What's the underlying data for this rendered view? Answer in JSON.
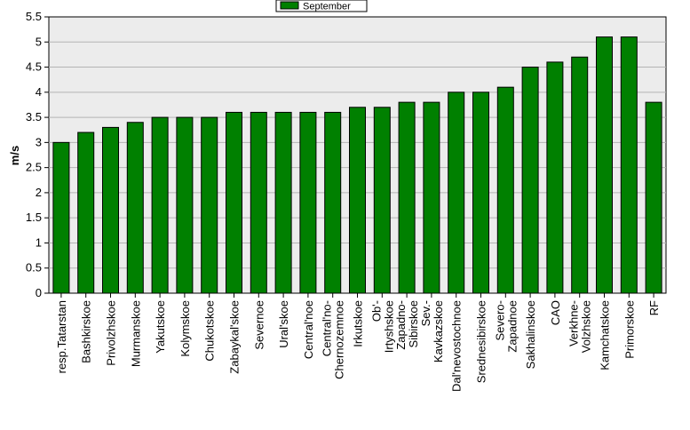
{
  "chart_data": {
    "type": "bar",
    "title": "",
    "xlabel": "",
    "ylabel": "m/s",
    "ylim": [
      0,
      5.5
    ],
    "yticks": [
      "0",
      "0.5",
      "1",
      "1.5",
      "2",
      "2.5",
      "3",
      "3.5",
      "4",
      "4.5",
      "5",
      "5.5"
    ],
    "grid": true,
    "legend_position": "top-center",
    "categories": [
      "resp.Tatarstan",
      "Bashkirskoe",
      "Privolzhskoe",
      "Murmanskoe",
      "Yakutskoe",
      "Kolymskoe",
      "Chukotskoe",
      "Zabaykal'skoe",
      "Severnoe",
      "Ural'skoe",
      "Central'noe",
      "Central'no-\nChernozemnoe",
      "Irkutskoe",
      "Ob'-\nIrtyshskoe",
      "Zapadno-\nSibirskoe",
      "Sev.-\nKavkazskoe",
      "Dal'nevostochnoe",
      "Srednesibirskoe",
      "Severo-\nZapadnoe",
      "Sakhalinskoe",
      "CAO",
      "Verkhne-\nVolzhskoe",
      "Kamchatskoe",
      "Primorskoe",
      "RF"
    ],
    "series": [
      {
        "name": "September",
        "color": "#008000",
        "values": [
          3.0,
          3.2,
          3.3,
          3.4,
          3.5,
          3.5,
          3.5,
          3.6,
          3.6,
          3.6,
          3.6,
          3.6,
          3.7,
          3.7,
          3.8,
          3.8,
          4.0,
          4.0,
          4.1,
          4.5,
          4.6,
          4.7,
          5.1,
          5.1,
          3.8
        ]
      }
    ],
    "plot_background": "#ececec",
    "bar_outline": "#000000"
  }
}
